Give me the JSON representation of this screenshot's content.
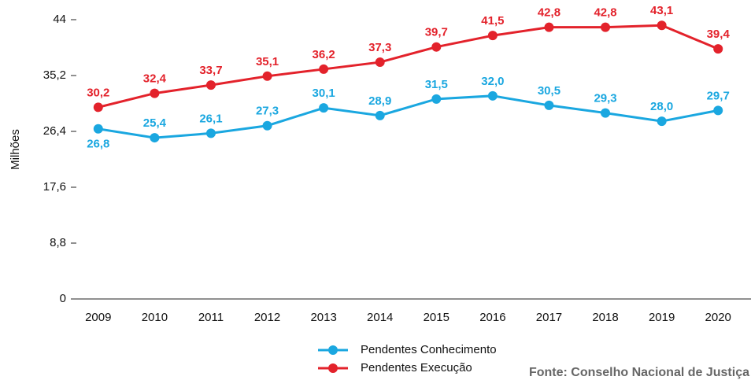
{
  "chart_data": {
    "type": "line",
    "categories": [
      "2009",
      "2010",
      "2011",
      "2012",
      "2013",
      "2014",
      "2015",
      "2016",
      "2017",
      "2018",
      "2019",
      "2020"
    ],
    "series": [
      {
        "name": "Pendentes Conhecimento",
        "color": "#1aa7e0",
        "values": [
          26.8,
          25.4,
          26.1,
          27.3,
          30.1,
          28.9,
          31.5,
          32.0,
          30.5,
          29.3,
          28.0,
          29.7
        ],
        "value_labels": [
          "26,8",
          "25,4",
          "26,1",
          "27,3",
          "30,1",
          "28,9",
          "31,5",
          "32,0",
          "30,5",
          "29,3",
          "28,0",
          "29,7"
        ]
      },
      {
        "name": "Pendentes Execução",
        "color": "#e3222b",
        "values": [
          30.2,
          32.4,
          33.7,
          35.1,
          36.2,
          37.3,
          39.7,
          41.5,
          42.8,
          42.8,
          43.1,
          39.4
        ],
        "value_labels": [
          "30,2",
          "32,4",
          "33,7",
          "35,1",
          "36,2",
          "37,3",
          "39,7",
          "41,5",
          "42,8",
          "42,8",
          "43,1",
          "39,4"
        ]
      }
    ],
    "ylabel": "Milhões",
    "ylim": [
      0,
      44
    ],
    "yticks": [
      0,
      {
        "value": 8.8,
        "label": "8,8"
      },
      {
        "value": 17.6,
        "label": "17,6"
      },
      {
        "value": 26.4,
        "label": "26,4"
      },
      {
        "value": 35.2,
        "label": "35,2"
      },
      44
    ],
    "source": "Fonte: Conselho Nacional de Justiça"
  }
}
